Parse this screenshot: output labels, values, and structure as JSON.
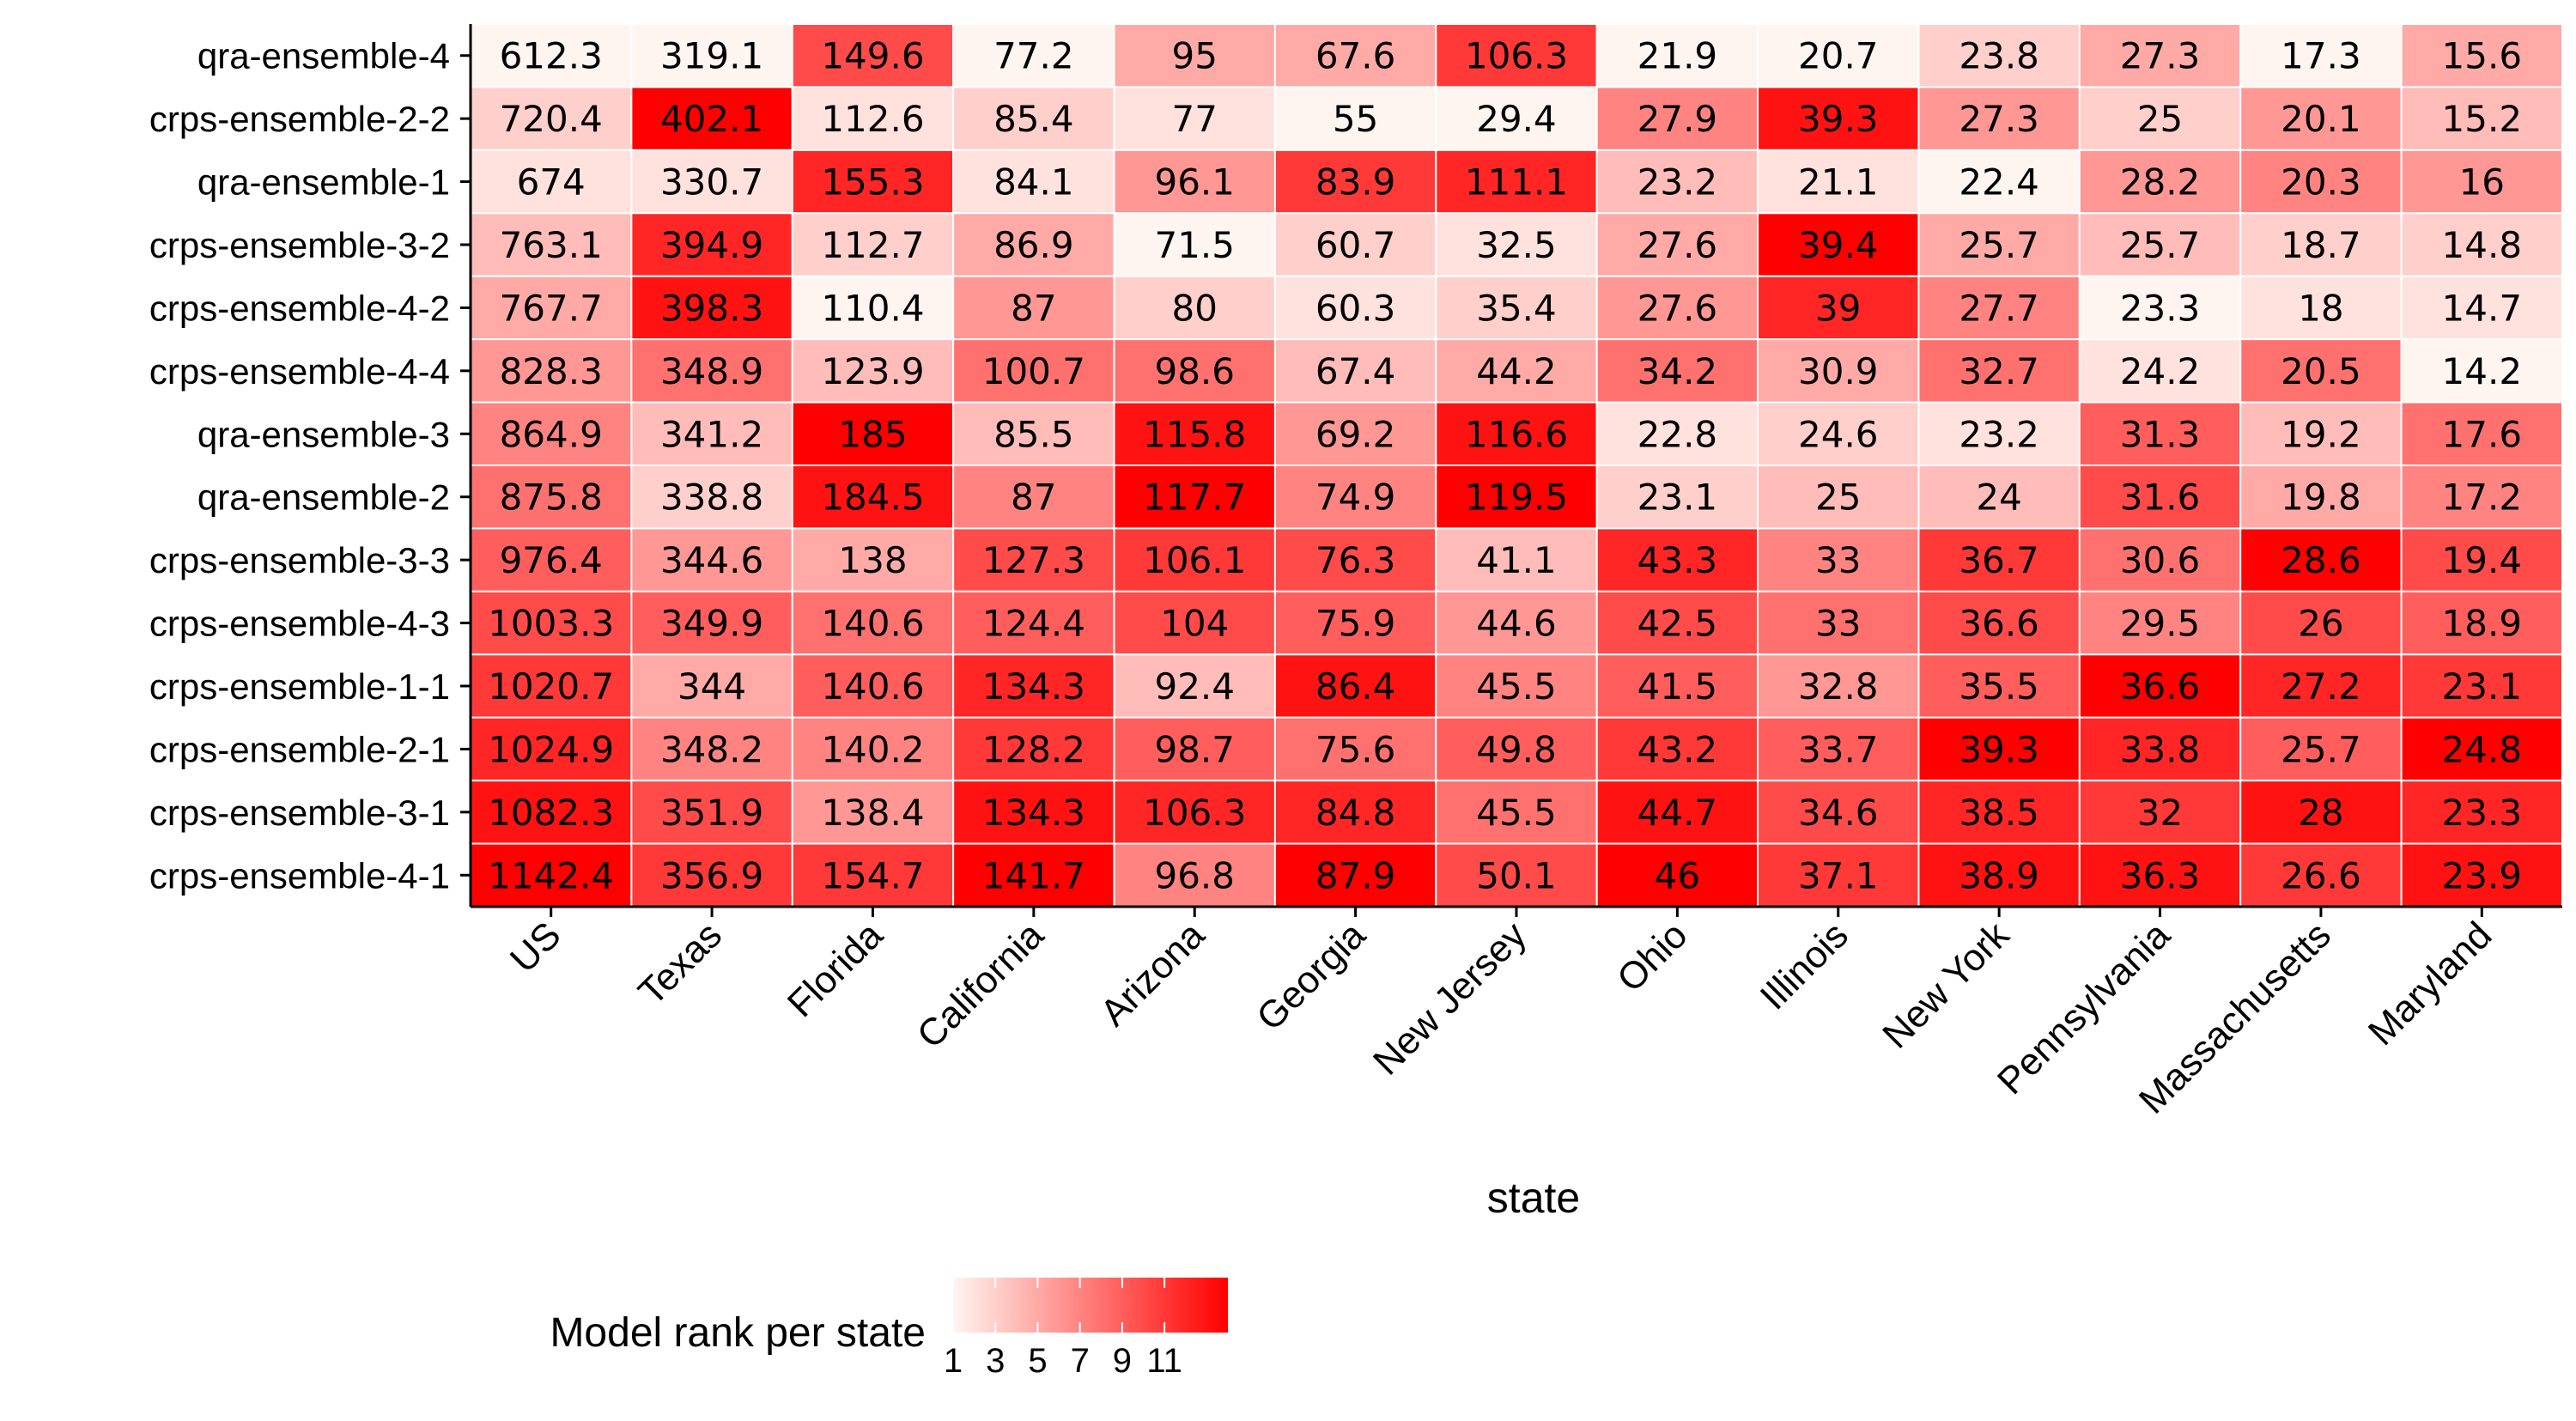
{
  "chart_data": {
    "type": "heatmap",
    "title": "",
    "xlabel": "state",
    "ylabel": "",
    "x": [
      "US",
      "Texas",
      "Florida",
      "California",
      "Arizona",
      "Georgia",
      "New Jersey",
      "Ohio",
      "Illinois",
      "New York",
      "Pennsylvania",
      "Massachusetts",
      "Maryland"
    ],
    "y": [
      "qra-ensemble-4",
      "crps-ensemble-2-2",
      "qra-ensemble-1",
      "crps-ensemble-3-2",
      "crps-ensemble-4-2",
      "crps-ensemble-4-4",
      "qra-ensemble-3",
      "qra-ensemble-2",
      "crps-ensemble-3-3",
      "crps-ensemble-4-3",
      "crps-ensemble-1-1",
      "crps-ensemble-2-1",
      "crps-ensemble-3-1",
      "crps-ensemble-4-1"
    ],
    "values": [
      [
        612.3,
        319.1,
        149.6,
        77.2,
        95,
        67.6,
        106.3,
        21.9,
        20.7,
        23.8,
        27.3,
        17.3,
        15.6
      ],
      [
        720.4,
        402.1,
        112.6,
        85.4,
        77,
        55,
        29.4,
        27.9,
        39.3,
        27.3,
        25,
        20.1,
        15.2
      ],
      [
        674,
        330.7,
        155.3,
        84.1,
        96.1,
        83.9,
        111.1,
        23.2,
        21.1,
        22.4,
        28.2,
        20.3,
        16
      ],
      [
        763.1,
        394.9,
        112.7,
        86.9,
        71.5,
        60.7,
        32.5,
        27.6,
        39.4,
        25.7,
        25.7,
        18.7,
        14.8
      ],
      [
        767.7,
        398.3,
        110.4,
        87,
        80,
        60.3,
        35.4,
        27.6,
        39,
        27.7,
        23.3,
        18,
        14.7
      ],
      [
        828.3,
        348.9,
        123.9,
        100.7,
        98.6,
        67.4,
        44.2,
        34.2,
        30.9,
        32.7,
        24.2,
        20.5,
        14.2
      ],
      [
        864.9,
        341.2,
        185,
        85.5,
        115.8,
        69.2,
        116.6,
        22.8,
        24.6,
        23.2,
        31.3,
        19.2,
        17.6
      ],
      [
        875.8,
        338.8,
        184.5,
        87,
        117.7,
        74.9,
        119.5,
        23.1,
        25,
        24,
        31.6,
        19.8,
        17.2
      ],
      [
        976.4,
        344.6,
        138,
        127.3,
        106.1,
        76.3,
        41.1,
        43.3,
        33,
        36.7,
        30.6,
        28.6,
        19.4
      ],
      [
        1003.3,
        349.9,
        140.6,
        124.4,
        104,
        75.9,
        44.6,
        42.5,
        33,
        36.6,
        29.5,
        26,
        18.9
      ],
      [
        1020.7,
        344,
        140.6,
        134.3,
        92.4,
        86.4,
        45.5,
        41.5,
        32.8,
        35.5,
        36.6,
        27.2,
        23.1
      ],
      [
        1024.9,
        348.2,
        140.2,
        128.2,
        98.7,
        75.6,
        49.8,
        43.2,
        33.7,
        39.3,
        33.8,
        25.7,
        24.8
      ],
      [
        1082.3,
        351.9,
        138.4,
        134.3,
        106.3,
        84.8,
        45.5,
        44.7,
        34.6,
        38.5,
        32,
        28,
        23.3
      ],
      [
        1142.4,
        356.9,
        154.7,
        141.7,
        96.8,
        87.9,
        50.1,
        46,
        37.1,
        38.9,
        36.3,
        26.6,
        23.9
      ]
    ],
    "color_encoding": "model rank within each state (1 = lowest value)",
    "colorscale": {
      "low": "#fff5f0",
      "high": "#ff0000"
    },
    "legend": {
      "title": "Model rank per state",
      "ticks": [
        "1",
        "3",
        "5",
        "7",
        "9",
        "11"
      ],
      "range": [
        1,
        14
      ],
      "placement": "bottom-left"
    }
  }
}
